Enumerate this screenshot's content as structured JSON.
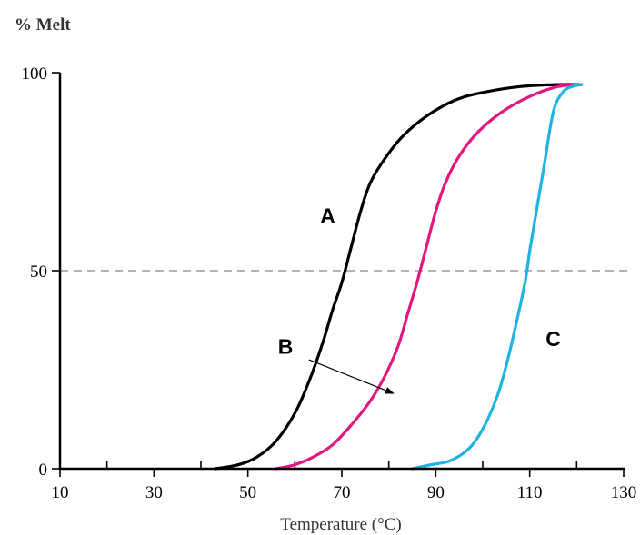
{
  "chart_data": {
    "type": "line",
    "ylabel": "% Melt",
    "xlabel": "Temperature (°C)",
    "xlim": [
      10,
      130
    ],
    "ylim": [
      0,
      100
    ],
    "xticks": [
      10,
      30,
      50,
      70,
      90,
      110,
      130
    ],
    "xminor": [
      20,
      40,
      60,
      80,
      100,
      120
    ],
    "yticks": [
      0,
      50,
      100
    ],
    "reference_line": {
      "y": 50,
      "style": "dashed"
    },
    "series": [
      {
        "name": "A",
        "color": "#000000",
        "x": [
          43,
          48,
          52,
          56,
          60,
          63,
          66,
          68,
          70,
          72,
          74,
          76,
          79,
          83,
          88,
          94,
          100,
          108,
          116,
          121
        ],
        "y": [
          0,
          1,
          3,
          7,
          14,
          22,
          32,
          40,
          47,
          56,
          65,
          72,
          78,
          84,
          89,
          93,
          95,
          96.5,
          97,
          97
        ]
      },
      {
        "name": "B",
        "color": "#e3157e",
        "x": [
          56,
          60,
          64,
          68,
          72,
          76,
          79,
          82,
          84,
          86,
          88,
          90,
          92,
          95,
          99,
          104,
          110,
          116,
          121
        ],
        "y": [
          0,
          1,
          3,
          6,
          11,
          17,
          23,
          31,
          39,
          47,
          56,
          65,
          72,
          79,
          85,
          90,
          94,
          96.5,
          97
        ]
      },
      {
        "name": "C",
        "color": "#1fb3e2",
        "x": [
          85,
          89,
          93,
          97,
          100,
          103,
          105,
          107,
          109,
          110,
          111,
          113,
          115,
          117,
          119,
          121
        ],
        "y": [
          0,
          1,
          2,
          5,
          10,
          18,
          26,
          36,
          47,
          55,
          62,
          76,
          90,
          95,
          96.5,
          97
        ]
      }
    ],
    "annotations": [
      {
        "text": "A",
        "x": 67,
        "y": 62
      },
      {
        "text": "B",
        "x": 58,
        "y": 29
      },
      {
        "text": "C",
        "x": 115,
        "y": 31
      }
    ],
    "arrow": {
      "from": [
        63,
        27.5
      ],
      "to": [
        81,
        19
      ]
    },
    "grid": false,
    "legend": "none"
  }
}
